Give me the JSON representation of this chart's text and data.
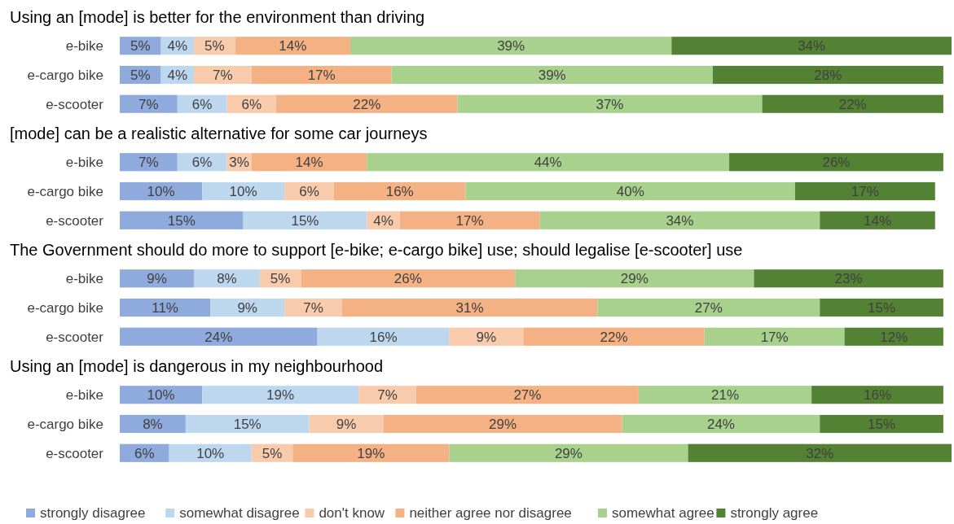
{
  "chart_data": [
    {
      "type": "bar",
      "title": "Using an [mode] is better for the environment than driving",
      "categories": [
        "e-bike",
        "e-cargo bike",
        "e-scooter"
      ],
      "orientation": "horizontal",
      "stacked": true,
      "series": [
        {
          "color": "#8faadc",
          "values": [
            5,
            5,
            7
          ],
          "value_labels": [
            "5%",
            "5%",
            "7%"
          ]
        },
        {
          "color": "#bdd7ee",
          "values": [
            4,
            4,
            6
          ],
          "value_labels": [
            "4%",
            "4%",
            "6%"
          ]
        },
        {
          "color": "#f8cbad",
          "values": [
            5,
            7,
            6
          ],
          "value_labels": [
            "5%",
            "7%",
            "6%"
          ]
        },
        {
          "color": "#f4b183",
          "values": [
            14,
            17,
            22
          ],
          "value_labels": [
            "14%",
            "17%",
            "22%"
          ]
        },
        {
          "color": "#a9d18e",
          "values": [
            39,
            39,
            37
          ],
          "value_labels": [
            "39%",
            "39%",
            "37%"
          ]
        },
        {
          "color": "#548235",
          "values": [
            34,
            28,
            22
          ],
          "value_labels": [
            "34%",
            "28%",
            "22%"
          ]
        }
      ]
    },
    {
      "type": "bar",
      "title": "[mode] can be a realistic alternative for some car journeys",
      "categories": [
        "e-bike",
        "e-cargo bike",
        "e-scooter"
      ],
      "orientation": "horizontal",
      "stacked": true,
      "series": [
        {
          "color": "#8faadc",
          "values": [
            7,
            10,
            15
          ],
          "value_labels": [
            "7%",
            "10%",
            "15%"
          ]
        },
        {
          "color": "#bdd7ee",
          "values": [
            6,
            10,
            15
          ],
          "value_labels": [
            "6%",
            "10%",
            "15%"
          ]
        },
        {
          "color": "#f8cbad",
          "values": [
            3,
            6,
            4
          ],
          "value_labels": [
            "3%",
            "6%",
            "4%"
          ]
        },
        {
          "color": "#f4b183",
          "values": [
            14,
            16,
            17
          ],
          "value_labels": [
            "14%",
            "16%",
            "17%"
          ]
        },
        {
          "color": "#a9d18e",
          "values": [
            44,
            40,
            34
          ],
          "value_labels": [
            "44%",
            "40%",
            "34%"
          ]
        },
        {
          "color": "#548235",
          "values": [
            26,
            17,
            14
          ],
          "value_labels": [
            "26%",
            "17%",
            "14%"
          ]
        }
      ]
    },
    {
      "type": "bar",
      "title": "The Government should do more to support [e-bike; e-cargo bike] use; should legalise [e-scooter] use",
      "categories": [
        "e-bike",
        "e-cargo bike",
        "e-scooter"
      ],
      "orientation": "horizontal",
      "stacked": true,
      "series": [
        {
          "color": "#8faadc",
          "values": [
            9,
            11,
            24
          ],
          "value_labels": [
            "9%",
            "11%",
            "24%"
          ]
        },
        {
          "color": "#bdd7ee",
          "values": [
            8,
            9,
            16
          ],
          "value_labels": [
            "8%",
            "9%",
            "16%"
          ]
        },
        {
          "color": "#f8cbad",
          "values": [
            5,
            7,
            9
          ],
          "value_labels": [
            "5%",
            "7%",
            "9%"
          ]
        },
        {
          "color": "#f4b183",
          "values": [
            26,
            31,
            22
          ],
          "value_labels": [
            "26%",
            "31%",
            "22%"
          ]
        },
        {
          "color": "#a9d18e",
          "values": [
            29,
            27,
            17
          ],
          "value_labels": [
            "29%",
            "27%",
            "17%"
          ]
        },
        {
          "color": "#548235",
          "values": [
            23,
            15,
            12
          ],
          "value_labels": [
            "23%",
            "15%",
            "12%"
          ]
        }
      ]
    },
    {
      "type": "bar",
      "title": "Using an [mode] is dangerous in my neighbourhood",
      "categories": [
        "e-bike",
        "e-cargo bike",
        "e-scooter"
      ],
      "orientation": "horizontal",
      "stacked": true,
      "legend": "bottom",
      "series": [
        {
          "name": "strongly disagree",
          "color": "#8faadc",
          "values": [
            10,
            8,
            6
          ],
          "value_labels": [
            "10%",
            "8%",
            "6%"
          ]
        },
        {
          "name": "somewhat disagree",
          "color": "#bdd7ee",
          "values": [
            19,
            15,
            10
          ],
          "value_labels": [
            "19%",
            "15%",
            "10%"
          ]
        },
        {
          "name": "don't know",
          "color": "#f8cbad",
          "values": [
            7,
            9,
            5
          ],
          "value_labels": [
            "7%",
            "9%",
            "5%"
          ]
        },
        {
          "name": "neither agree nor disagree",
          "color": "#f4b183",
          "values": [
            27,
            29,
            19
          ],
          "value_labels": [
            "27%",
            "29%",
            "19%"
          ]
        },
        {
          "name": "somewhat agree",
          "color": "#a9d18e",
          "values": [
            21,
            24,
            29
          ],
          "value_labels": [
            "21%",
            "24%",
            "29%"
          ]
        },
        {
          "name": "strongly agree",
          "color": "#548235",
          "values": [
            16,
            15,
            32
          ],
          "value_labels": [
            "16%",
            "15%",
            "32%"
          ]
        }
      ]
    }
  ]
}
